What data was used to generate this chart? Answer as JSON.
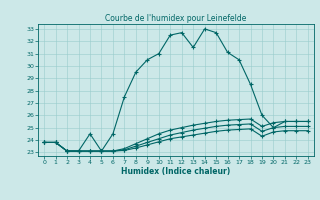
{
  "title": "Courbe de l'humidex pour Leinefelde",
  "xlabel": "Humidex (Indice chaleur)",
  "bg_color": "#cce8e8",
  "grid_color": "#99cccc",
  "line_color": "#006666",
  "xlim": [
    -0.5,
    23.5
  ],
  "ylim": [
    22.7,
    33.4
  ],
  "xticks": [
    0,
    1,
    2,
    3,
    4,
    5,
    6,
    7,
    8,
    9,
    10,
    11,
    12,
    13,
    14,
    15,
    16,
    17,
    18,
    19,
    20,
    21,
    22,
    23
  ],
  "yticks": [
    23,
    24,
    25,
    26,
    27,
    28,
    29,
    30,
    31,
    32,
    33
  ],
  "line1_x": [
    0,
    1,
    2,
    3,
    4,
    5,
    6,
    7,
    8,
    9,
    10,
    11,
    12,
    13,
    14,
    15,
    16,
    17,
    18,
    19,
    20,
    21,
    22,
    23
  ],
  "line1_y": [
    23.8,
    23.8,
    23.1,
    23.1,
    24.5,
    23.1,
    24.5,
    27.5,
    29.5,
    30.5,
    31.0,
    32.5,
    32.7,
    31.5,
    33.0,
    32.7,
    31.1,
    30.5,
    28.5,
    26.0,
    25.0,
    25.5,
    25.5,
    25.5
  ],
  "line2_x": [
    0,
    1,
    2,
    3,
    4,
    5,
    6,
    7,
    8,
    9,
    10,
    11,
    12,
    13,
    14,
    15,
    16,
    17,
    18,
    19,
    20,
    21,
    22,
    23
  ],
  "line2_y": [
    23.8,
    23.8,
    23.1,
    23.1,
    23.1,
    23.1,
    23.1,
    23.3,
    23.7,
    24.1,
    24.5,
    24.8,
    25.0,
    25.2,
    25.35,
    25.5,
    25.6,
    25.65,
    25.7,
    25.1,
    25.4,
    25.5,
    25.5,
    25.5
  ],
  "line3_x": [
    0,
    1,
    2,
    3,
    4,
    5,
    6,
    7,
    8,
    9,
    10,
    11,
    12,
    13,
    14,
    15,
    16,
    17,
    18,
    19,
    20,
    21,
    22,
    23
  ],
  "line3_y": [
    23.8,
    23.8,
    23.1,
    23.1,
    23.1,
    23.1,
    23.1,
    23.2,
    23.5,
    23.8,
    24.1,
    24.4,
    24.6,
    24.8,
    24.95,
    25.1,
    25.2,
    25.25,
    25.3,
    24.7,
    25.0,
    25.1,
    25.1,
    25.1
  ],
  "line4_x": [
    0,
    1,
    2,
    3,
    4,
    5,
    6,
    7,
    8,
    9,
    10,
    11,
    12,
    13,
    14,
    15,
    16,
    17,
    18,
    19,
    20,
    21,
    22,
    23
  ],
  "line4_y": [
    23.8,
    23.8,
    23.1,
    23.1,
    23.1,
    23.1,
    23.1,
    23.15,
    23.35,
    23.6,
    23.85,
    24.1,
    24.25,
    24.4,
    24.55,
    24.7,
    24.8,
    24.85,
    24.9,
    24.3,
    24.65,
    24.75,
    24.75,
    24.75
  ]
}
